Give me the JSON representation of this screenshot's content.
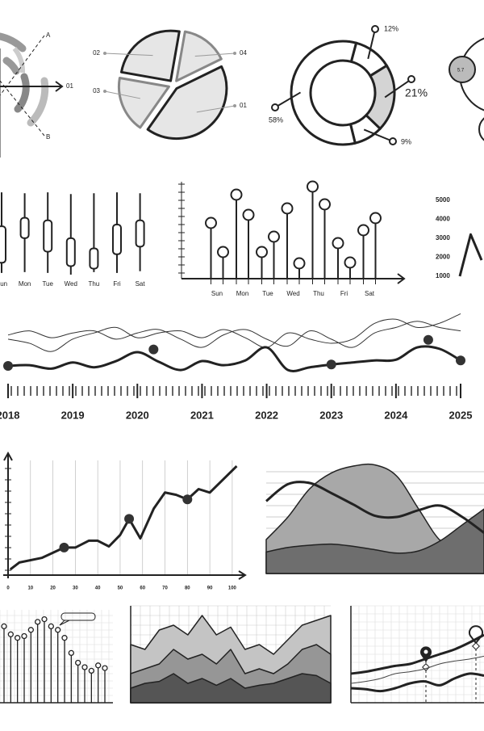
{
  "chart_data": [
    {
      "type": "radial",
      "labels": [
        "A",
        "B",
        "01"
      ]
    },
    {
      "type": "pie",
      "categories": [
        "04",
        "01",
        "03",
        "02"
      ],
      "values": [
        15,
        42,
        18,
        25
      ],
      "colors": [
        "#e6e6e6",
        "#e6e6e6",
        "#e6e6e6",
        "#e6e6e6"
      ],
      "edge_colors": [
        "#888888",
        "#222222",
        "#888888",
        "#222222"
      ]
    },
    {
      "type": "donut",
      "values": [
        12,
        21,
        9,
        58
      ],
      "value_labels": [
        "12%",
        "21%",
        "9%",
        "58%"
      ],
      "colors": [
        "#ffffff",
        "#d4d4d4",
        "#ffffff",
        "#ffffff"
      ]
    },
    {
      "type": "bubble",
      "values": [
        5.7
      ],
      "color": "#bbbbbb"
    },
    {
      "type": "candlestick",
      "categories": [
        "Sun",
        "Mon",
        "Tue",
        "Wed",
        "Thu",
        "Fri",
        "Sat"
      ],
      "ylim": [
        0,
        100
      ],
      "low": [
        2,
        3,
        2,
        0,
        3,
        2,
        4
      ],
      "high": [
        97,
        96,
        97,
        95,
        96,
        97,
        96
      ],
      "open": [
        14,
        43,
        27,
        10,
        7,
        24,
        33
      ],
      "close": [
        57,
        67,
        64,
        43,
        31,
        59,
        64
      ]
    },
    {
      "type": "lollipop",
      "categories": [
        "Sun",
        "Mon",
        "Tue",
        "Wed",
        "Thu",
        "Fri",
        "Sat"
      ],
      "ylim": [
        0,
        120
      ],
      "series": [
        {
          "color": "#222222",
          "values": [
            69,
            104,
            33,
            87,
            114,
            44,
            60
          ]
        },
        {
          "color": "#222222",
          "values": [
            33,
            79,
            52,
            19,
            92,
            20,
            75
          ]
        }
      ]
    },
    {
      "type": "line",
      "categories": [
        null,
        null,
        null
      ],
      "ylim": [
        1000,
        5000
      ],
      "yticks": [
        5000,
        4000,
        3000,
        2000,
        1000
      ],
      "series": [
        {
          "style": "thick-line",
          "color": "#222222",
          "values": [
            1000,
            3200,
            1850
          ]
        }
      ]
    },
    {
      "type": "line",
      "smooth": true,
      "xlim": [
        2018,
        2025
      ],
      "xticks": [
        2018,
        2019,
        2020,
        2021,
        2022,
        2023,
        2024,
        2025
      ],
      "ylim": [
        0,
        100
      ],
      "x": [
        2018,
        2018.33,
        2018.67,
        2019,
        2019.33,
        2019.67,
        2020,
        2020.33,
        2020.67,
        2021,
        2021.33,
        2021.67,
        2022,
        2022.33,
        2022.67,
        2023,
        2023.33,
        2023.67,
        2024,
        2024.33,
        2024.67,
        2025
      ],
      "series": [
        {
          "style": "line",
          "color": "#333333",
          "values": [
            65,
            71,
            61,
            68,
            71,
            59,
            68,
            73,
            59,
            47,
            65,
            73,
            59,
            49,
            71,
            59,
            47,
            68,
            76,
            85,
            76,
            71
          ]
        },
        {
          "style": "line",
          "color": "#333333",
          "values": [
            59,
            53,
            41,
            59,
            68,
            76,
            61,
            68,
            71,
            61,
            73,
            61,
            47,
            68,
            59,
            53,
            59,
            82,
            88,
            76,
            82,
            96
          ]
        },
        {
          "style": "thick-line",
          "color": "#222222",
          "values": [
            20,
            21,
            16,
            25,
            18,
            27,
            40,
            26,
            14,
            27,
            21,
            28,
            47,
            14,
            18,
            22,
            25,
            28,
            29,
            47,
            45,
            28
          ]
        },
        {
          "style": "dots",
          "color": "#333333",
          "x": [
            2018,
            2020.25,
            2023,
            2024.5,
            2025
          ],
          "values": [
            20,
            44,
            22,
            58,
            28
          ]
        }
      ]
    },
    {
      "type": "line",
      "xlim": [
        0,
        104
      ],
      "xticks": [
        0,
        10,
        20,
        30,
        40,
        50,
        60,
        70,
        80,
        90,
        100
      ],
      "ylim": [
        0,
        100
      ],
      "grid": true,
      "series": [
        {
          "style": "thick-line",
          "color": "#222222",
          "x": [
            1,
            5,
            15,
            25,
            30,
            36,
            40,
            45,
            50,
            54,
            59,
            65,
            70,
            75,
            80,
            85,
            90,
            102
          ],
          "values": [
            5,
            11,
            15,
            24,
            24,
            30,
            30,
            25,
            35,
            49,
            32,
            58,
            72,
            70,
            66,
            75,
            72,
            95
          ]
        },
        {
          "style": "dots",
          "color": "#333333",
          "x": [
            25,
            54,
            80
          ],
          "values": [
            24,
            49,
            66
          ]
        }
      ]
    },
    {
      "type": "line",
      "smooth": true,
      "categories": [
        null,
        null,
        null,
        null,
        null,
        null,
        null,
        null,
        null,
        null,
        null
      ],
      "ylim": [
        0,
        100
      ],
      "series": [
        {
          "style": "area",
          "color": "#a8a8a8",
          "values": [
            30,
            50,
            75,
            89,
            95,
            96,
            86,
            57,
            29,
            21,
            27
          ]
        },
        {
          "style": "area",
          "color": "#6e6e6e",
          "values": [
            19,
            23,
            25,
            26,
            24,
            21,
            18,
            20,
            29,
            43,
            57
          ]
        },
        {
          "style": "thick-line",
          "color": "#222222",
          "values": [
            64,
            79,
            80,
            71,
            61,
            51,
            50,
            56,
            60,
            50,
            36
          ]
        }
      ]
    },
    {
      "type": "line",
      "categories": [
        null,
        null,
        null,
        null,
        null,
        null,
        null,
        null,
        null,
        null,
        null,
        null,
        null,
        null,
        null,
        null
      ],
      "ylim": [
        0,
        100
      ],
      "series": [
        {
          "style": "lollipop",
          "color": "#222222",
          "values": [
            86,
            77,
            73,
            75,
            82,
            91,
            94,
            86,
            82,
            73,
            56,
            45,
            40,
            36,
            42,
            39
          ]
        }
      ]
    },
    {
      "type": "line",
      "categories": [
        null,
        null,
        null,
        null,
        null,
        null,
        null,
        null,
        null,
        null,
        null,
        null,
        null,
        null,
        null
      ],
      "ylim": [
        0,
        100
      ],
      "series": [
        {
          "style": "area",
          "color": "#c4c4c4",
          "values": [
            60,
            55,
            75,
            80,
            70,
            90,
            70,
            78,
            55,
            60,
            50,
            65,
            80,
            85,
            90
          ]
        },
        {
          "style": "area",
          "color": "#969696",
          "values": [
            30,
            35,
            40,
            55,
            45,
            50,
            40,
            55,
            30,
            35,
            30,
            40,
            55,
            60,
            50
          ]
        },
        {
          "style": "area",
          "color": "#555555",
          "values": [
            15,
            20,
            22,
            30,
            20,
            25,
            18,
            25,
            15,
            18,
            20,
            25,
            30,
            28,
            20
          ]
        }
      ]
    },
    {
      "type": "line",
      "smooth": true,
      "categories": [
        null,
        null,
        null,
        null,
        null,
        null,
        null,
        null,
        null,
        null
      ],
      "ylim": [
        0,
        100
      ],
      "series": [
        {
          "style": "thick-line",
          "color": "#222222",
          "values": [
            30,
            32,
            35,
            38,
            40,
            45,
            50,
            55,
            62,
            70
          ]
        },
        {
          "style": "line",
          "color": "#444444",
          "values": [
            20,
            22,
            25,
            30,
            32,
            35,
            40,
            43,
            45,
            48
          ]
        },
        {
          "style": "thick-line",
          "color": "#222222",
          "values": [
            15,
            14,
            12,
            15,
            20,
            22,
            18,
            25,
            30,
            28
          ]
        }
      ]
    }
  ]
}
